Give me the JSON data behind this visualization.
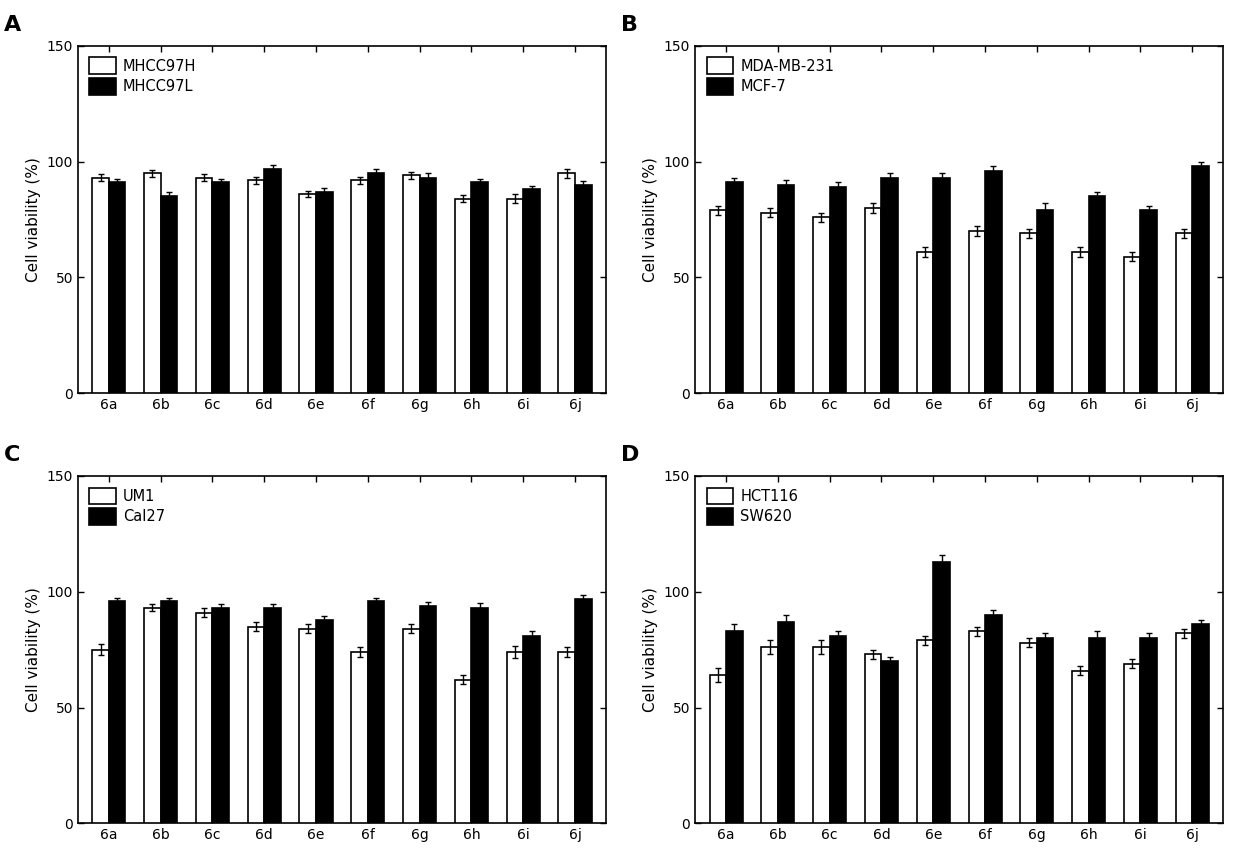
{
  "categories": [
    "6a",
    "6b",
    "6c",
    "6d",
    "6e",
    "6f",
    "6g",
    "6h",
    "6i",
    "6j"
  ],
  "panels": [
    {
      "label": "A",
      "legend1": "MHCC97H",
      "legend2": "MHCC97L",
      "bar1": [
        93,
        95,
        93,
        92,
        86,
        92,
        94,
        84,
        84,
        95
      ],
      "bar2": [
        91,
        85,
        91,
        97,
        87,
        95,
        93,
        91,
        88,
        90
      ],
      "err1": [
        1.5,
        1.5,
        1.5,
        1.5,
        1.5,
        1.5,
        1.5,
        1.5,
        2.0,
        2.0
      ],
      "err2": [
        1.5,
        2.0,
        1.5,
        1.5,
        1.5,
        2.0,
        2.0,
        1.5,
        1.5,
        1.5
      ]
    },
    {
      "label": "B",
      "legend1": "MDA-MB-231",
      "legend2": "MCF-7",
      "bar1": [
        79,
        78,
        76,
        80,
        61,
        70,
        69,
        61,
        59,
        69
      ],
      "bar2": [
        91,
        90,
        89,
        93,
        93,
        96,
        79,
        85,
        79,
        98
      ],
      "err1": [
        2.0,
        2.0,
        2.0,
        2.0,
        2.0,
        2.0,
        2.0,
        2.0,
        2.0,
        2.0
      ],
      "err2": [
        2.0,
        2.0,
        2.0,
        2.0,
        2.0,
        2.0,
        3.0,
        2.0,
        2.0,
        2.0
      ]
    },
    {
      "label": "C",
      "legend1": "UM1",
      "legend2": "Cal27",
      "bar1": [
        75,
        93,
        91,
        85,
        84,
        74,
        84,
        62,
        74,
        74
      ],
      "bar2": [
        96,
        96,
        93,
        93,
        88,
        96,
        94,
        93,
        81,
        97
      ],
      "err1": [
        2.5,
        1.5,
        2.0,
        2.0,
        2.0,
        2.0,
        2.0,
        2.0,
        2.5,
        2.0
      ],
      "err2": [
        1.5,
        1.5,
        1.5,
        1.5,
        1.5,
        1.5,
        1.5,
        2.0,
        2.0,
        1.5
      ]
    },
    {
      "label": "D",
      "legend1": "HCT116",
      "legend2": "SW620",
      "bar1": [
        64,
        76,
        76,
        73,
        79,
        83,
        78,
        66,
        69,
        82
      ],
      "bar2": [
        83,
        87,
        81,
        70,
        113,
        90,
        80,
        80,
        80,
        86
      ],
      "err1": [
        3.0,
        3.0,
        3.0,
        2.0,
        2.0,
        2.0,
        2.0,
        2.0,
        2.0,
        2.0
      ],
      "err2": [
        3.0,
        3.0,
        2.0,
        2.0,
        3.0,
        2.0,
        2.0,
        3.0,
        2.0,
        2.0
      ]
    }
  ],
  "ylabel": "Cell viability (%)",
  "ylim": [
    0,
    150
  ],
  "yticks": [
    0,
    50,
    100,
    150
  ],
  "bar_width": 0.32,
  "color1": "white",
  "color2": "black",
  "edgecolor": "black",
  "background_color": "white",
  "fontsize_label": 11,
  "fontsize_tick": 10,
  "fontsize_panel_label": 16
}
